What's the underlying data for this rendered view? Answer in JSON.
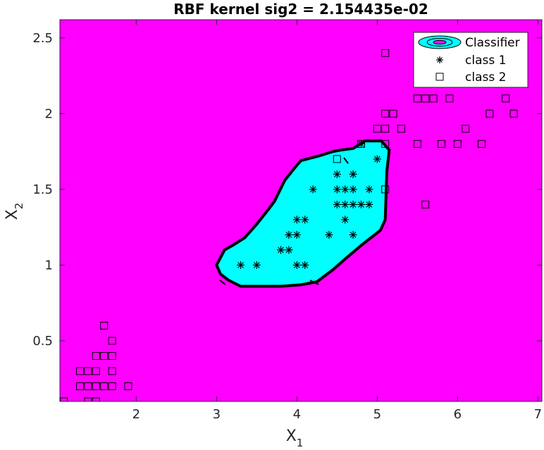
{
  "chart_data": {
    "type": "scatter",
    "title": "RBF kernel sig2 =  2.154435e-02",
    "xlabel": "X",
    "xlabel_sub": "1",
    "ylabel": "X",
    "ylabel_sub": "2",
    "xlim": [
      1.05,
      7.05
    ],
    "ylim": [
      0.1,
      2.62
    ],
    "xticks": [
      2,
      3,
      4,
      5,
      6,
      7
    ],
    "yticks": [
      0.5,
      1,
      1.5,
      2,
      2.5
    ],
    "ytick_labels": [
      "0.5",
      "1",
      "1.5",
      "2",
      "2.5"
    ],
    "grid": false,
    "legend_position": "top-right",
    "colors": {
      "background_region": "#ff00ff",
      "classifier_region": "#00ffff",
      "boundary": "#000000",
      "marker": "#000000"
    },
    "legend": [
      {
        "label": "Classifier",
        "symbol": "classifier"
      },
      {
        "label": "class 1",
        "symbol": "asterisk"
      },
      {
        "label": "class 2",
        "symbol": "square"
      }
    ],
    "classifier_boundary": [
      [
        3.0,
        1.0
      ],
      [
        3.1,
        1.1
      ],
      [
        3.2,
        1.13
      ],
      [
        3.35,
        1.18
      ],
      [
        3.5,
        1.27
      ],
      [
        3.65,
        1.37
      ],
      [
        3.72,
        1.42
      ],
      [
        3.85,
        1.56
      ],
      [
        3.97,
        1.64
      ],
      [
        4.05,
        1.69
      ],
      [
        4.27,
        1.72
      ],
      [
        4.45,
        1.75
      ],
      [
        4.55,
        1.76
      ],
      [
        4.7,
        1.77
      ],
      [
        4.85,
        1.82
      ],
      [
        5.05,
        1.82
      ],
      [
        5.15,
        1.76
      ],
      [
        5.12,
        1.62
      ],
      [
        5.1,
        1.3
      ],
      [
        5.04,
        1.23
      ],
      [
        4.8,
        1.13
      ],
      [
        4.6,
        1.04
      ],
      [
        4.45,
        0.97
      ],
      [
        4.25,
        0.89
      ],
      [
        4.05,
        0.87
      ],
      [
        3.8,
        0.86
      ],
      [
        3.3,
        0.86
      ],
      [
        3.15,
        0.9
      ],
      [
        3.05,
        0.94
      ]
    ],
    "series": [
      {
        "name": "class 1",
        "marker": "asterisk",
        "points": [
          [
            3.3,
            1.0
          ],
          [
            3.5,
            1.0
          ],
          [
            3.8,
            1.1
          ],
          [
            3.9,
            1.1
          ],
          [
            3.9,
            1.2
          ],
          [
            4.0,
            1.2
          ],
          [
            4.0,
            1.0
          ],
          [
            4.1,
            1.0
          ],
          [
            4.0,
            1.3
          ],
          [
            4.1,
            1.3
          ],
          [
            4.2,
            1.5
          ],
          [
            4.4,
            1.2
          ],
          [
            4.5,
            1.4
          ],
          [
            4.5,
            1.5
          ],
          [
            4.5,
            1.6
          ],
          [
            4.6,
            1.3
          ],
          [
            4.6,
            1.4
          ],
          [
            4.6,
            1.5
          ],
          [
            4.7,
            1.2
          ],
          [
            4.7,
            1.4
          ],
          [
            4.7,
            1.5
          ],
          [
            4.7,
            1.6
          ],
          [
            4.8,
            1.4
          ],
          [
            4.8,
            1.8
          ],
          [
            4.9,
            1.4
          ],
          [
            4.9,
            1.5
          ],
          [
            5.0,
            1.7
          ]
        ]
      },
      {
        "name": "class 2",
        "marker": "square",
        "points": [
          [
            1.1,
            0.1
          ],
          [
            1.3,
            0.2
          ],
          [
            1.3,
            0.3
          ],
          [
            1.4,
            0.1
          ],
          [
            1.4,
            0.2
          ],
          [
            1.4,
            0.3
          ],
          [
            1.5,
            0.1
          ],
          [
            1.5,
            0.2
          ],
          [
            1.5,
            0.3
          ],
          [
            1.5,
            0.4
          ],
          [
            1.6,
            0.2
          ],
          [
            1.6,
            0.4
          ],
          [
            1.6,
            0.6
          ],
          [
            1.7,
            0.2
          ],
          [
            1.7,
            0.3
          ],
          [
            1.7,
            0.4
          ],
          [
            1.7,
            0.5
          ],
          [
            1.9,
            0.2
          ],
          [
            4.5,
            1.7
          ],
          [
            4.8,
            1.8
          ],
          [
            5.0,
            1.9
          ],
          [
            5.1,
            1.5
          ],
          [
            5.1,
            1.8
          ],
          [
            5.1,
            1.9
          ],
          [
            5.1,
            2.0
          ],
          [
            5.1,
            2.4
          ],
          [
            5.2,
            2.0
          ],
          [
            5.3,
            1.9
          ],
          [
            5.5,
            1.8
          ],
          [
            5.5,
            2.1
          ],
          [
            5.6,
            1.4
          ],
          [
            5.6,
            2.1
          ],
          [
            5.7,
            2.1
          ],
          [
            5.8,
            1.8
          ],
          [
            5.9,
            2.1
          ],
          [
            6.0,
            1.8
          ],
          [
            6.1,
            1.9
          ],
          [
            6.3,
            1.8
          ],
          [
            6.4,
            2.0
          ],
          [
            6.6,
            2.1
          ],
          [
            6.7,
            2.0
          ]
        ]
      }
    ]
  }
}
